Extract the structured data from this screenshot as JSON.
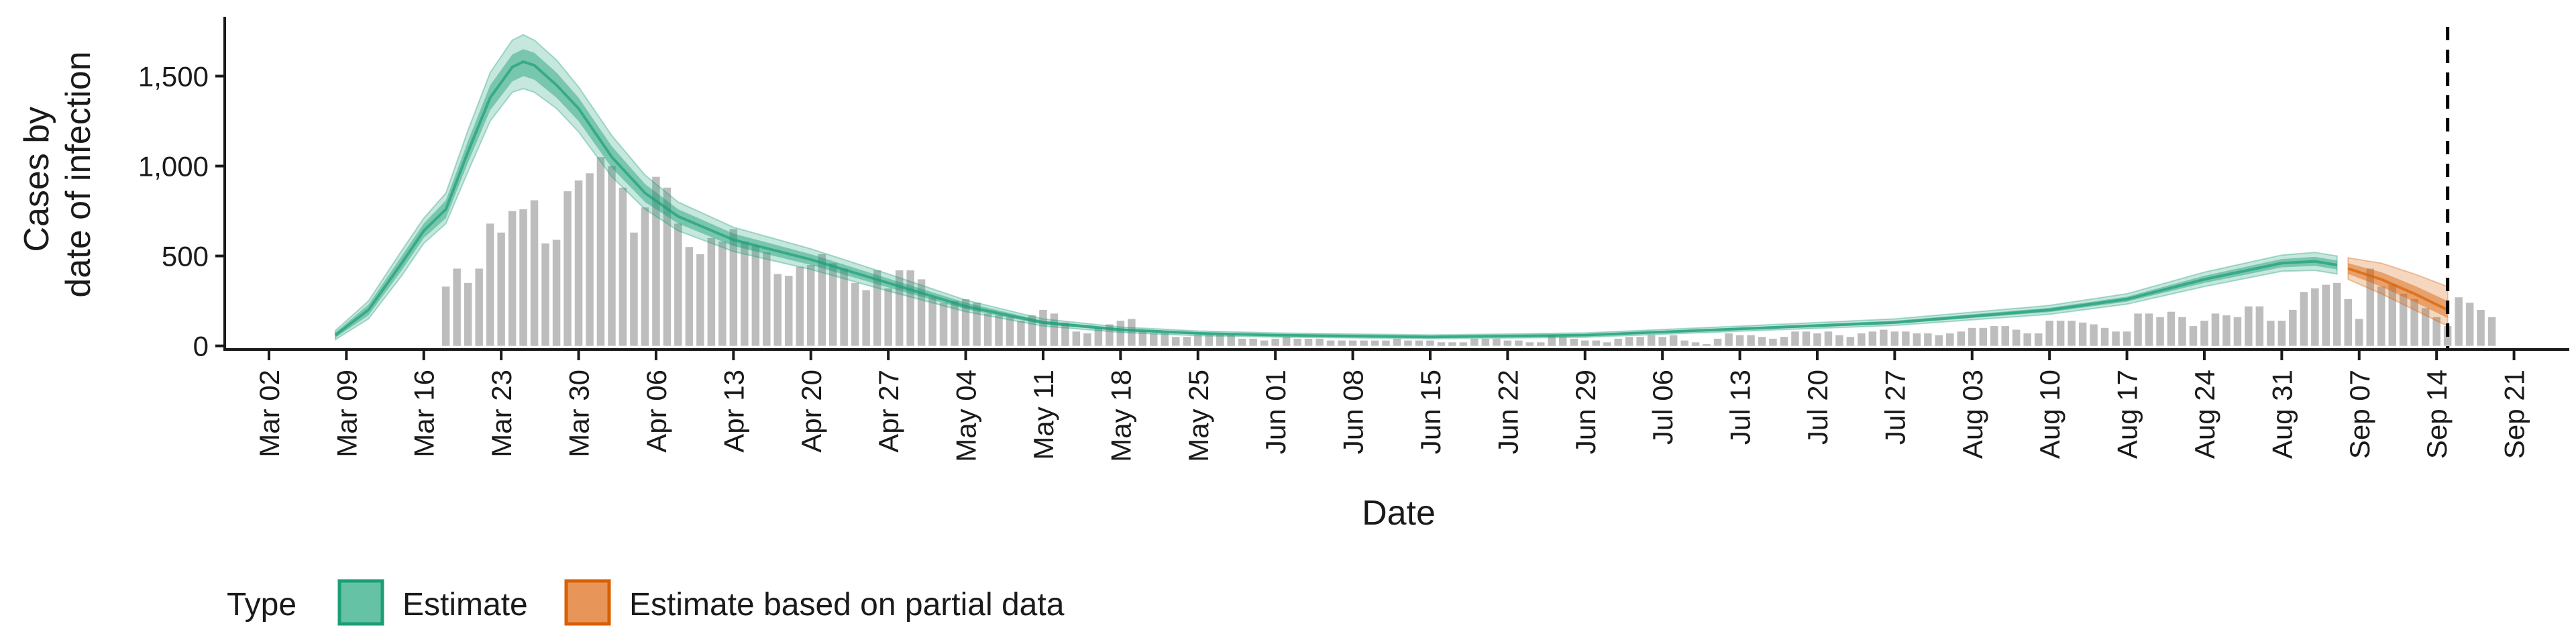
{
  "chart_data": {
    "type": "area",
    "xlabel": "Date",
    "ylabel_lines": [
      "Cases by",
      "date of infection"
    ],
    "ylim": [
      -20,
      1830
    ],
    "y_ticks": [
      0,
      500,
      1000,
      1500
    ],
    "y_tick_labels": [
      "0",
      "500",
      "1,000",
      "1,500"
    ],
    "x_ticks": [
      "2020-03-02",
      "2020-03-09",
      "2020-03-16",
      "2020-03-23",
      "2020-03-30",
      "2020-04-06",
      "2020-04-13",
      "2020-04-20",
      "2020-04-27",
      "2020-05-04",
      "2020-05-11",
      "2020-05-18",
      "2020-05-25",
      "2020-06-01",
      "2020-06-08",
      "2020-06-15",
      "2020-06-22",
      "2020-06-29",
      "2020-07-06",
      "2020-07-13",
      "2020-07-20",
      "2020-07-27",
      "2020-08-03",
      "2020-08-10",
      "2020-08-17",
      "2020-08-24",
      "2020-08-31",
      "2020-09-07",
      "2020-09-14",
      "2020-09-21"
    ],
    "x_tick_labels": [
      "Mar 02",
      "Mar 09",
      "Mar 16",
      "Mar 23",
      "Mar 30",
      "Apr 06",
      "Apr 13",
      "Apr 20",
      "Apr 27",
      "May 04",
      "May 11",
      "May 18",
      "May 25",
      "Jun 01",
      "Jun 08",
      "Jun 15",
      "Jun 22",
      "Jun 29",
      "Jul 06",
      "Jul 13",
      "Jul 20",
      "Jul 27",
      "Aug 03",
      "Aug 10",
      "Aug 17",
      "Aug 24",
      "Aug 31",
      "Sep 07",
      "Sep 14",
      "Sep 21"
    ],
    "xlim": [
      "2020-02-27",
      "2020-09-26"
    ],
    "vline": "2020-09-15",
    "grid": false,
    "legend_position": "bottom",
    "legend": {
      "title": "Type",
      "entries": [
        {
          "label": "Estimate",
          "fill": "#66c2a5",
          "border": "#1b9e77"
        },
        {
          "label": "Estimate based on partial data",
          "fill": "#e8955a",
          "border": "#d95f02"
        }
      ]
    },
    "colors": {
      "estimate": "#1b9e77",
      "partial": "#d95f02",
      "bars": "#bdbdbd"
    },
    "bars": {
      "start": "2020-03-18",
      "values": [
        330,
        430,
        350,
        430,
        680,
        630,
        750,
        760,
        810,
        570,
        590,
        860,
        920,
        960,
        1050,
        1000,
        880,
        630,
        770,
        940,
        880,
        680,
        550,
        510,
        600,
        580,
        650,
        580,
        560,
        520,
        400,
        390,
        440,
        450,
        510,
        460,
        430,
        350,
        310,
        420,
        320,
        420,
        420,
        370,
        270,
        240,
        250,
        260,
        240,
        180,
        170,
        160,
        140,
        170,
        200,
        180,
        130,
        80,
        70,
        100,
        120,
        140,
        150,
        80,
        70,
        70,
        50,
        50,
        60,
        60,
        60,
        60,
        40,
        40,
        30,
        40,
        50,
        40,
        40,
        40,
        30,
        30,
        30,
        30,
        30,
        30,
        40,
        30,
        30,
        30,
        20,
        20,
        20,
        40,
        40,
        40,
        30,
        30,
        20,
        20,
        60,
        50,
        40,
        30,
        30,
        20,
        40,
        50,
        50,
        60,
        50,
        60,
        30,
        20,
        10,
        40,
        70,
        60,
        60,
        50,
        40,
        50,
        80,
        80,
        70,
        80,
        60,
        50,
        70,
        80,
        90,
        80,
        80,
        70,
        70,
        60,
        70,
        80,
        100,
        100,
        110,
        110,
        90,
        70,
        70,
        140,
        140,
        140,
        130,
        120,
        100,
        80,
        80,
        180,
        180,
        160,
        190,
        160,
        110,
        140,
        180,
        170,
        160,
        220,
        220,
        140,
        140,
        200,
        300,
        320,
        340,
        350,
        260,
        150,
        430,
        330,
        340,
        290,
        260,
        210,
        160,
        110,
        270,
        240,
        200,
        160
      ]
    },
    "series": [
      {
        "name": "Estimate",
        "points": [
          [
            "2020-03-08",
            60,
            45,
            75,
            35,
            85
          ],
          [
            "2020-03-11",
            200,
            170,
            230,
            150,
            250
          ],
          [
            "2020-03-14",
            460,
            420,
            500,
            390,
            530
          ],
          [
            "2020-03-16",
            640,
            600,
            680,
            570,
            710
          ],
          [
            "2020-03-18",
            760,
            710,
            810,
            680,
            850
          ],
          [
            "2020-03-20",
            1080,
            1020,
            1140,
            970,
            1200
          ],
          [
            "2020-03-22",
            1380,
            1310,
            1450,
            1250,
            1520
          ],
          [
            "2020-03-24",
            1550,
            1470,
            1620,
            1410,
            1700
          ],
          [
            "2020-03-25",
            1580,
            1500,
            1650,
            1430,
            1730
          ],
          [
            "2020-03-26",
            1560,
            1480,
            1630,
            1410,
            1700
          ],
          [
            "2020-03-28",
            1450,
            1380,
            1520,
            1320,
            1590
          ],
          [
            "2020-03-30",
            1320,
            1250,
            1380,
            1190,
            1440
          ],
          [
            "2020-04-02",
            1050,
            990,
            1110,
            940,
            1170
          ],
          [
            "2020-04-05",
            850,
            800,
            900,
            760,
            950
          ],
          [
            "2020-04-08",
            720,
            680,
            760,
            640,
            800
          ],
          [
            "2020-04-13",
            590,
            555,
            625,
            525,
            660
          ],
          [
            "2020-04-20",
            480,
            450,
            510,
            425,
            540
          ],
          [
            "2020-04-27",
            350,
            325,
            375,
            305,
            400
          ],
          [
            "2020-05-04",
            220,
            205,
            240,
            190,
            255
          ],
          [
            "2020-05-11",
            130,
            120,
            140,
            110,
            150
          ],
          [
            "2020-05-18",
            90,
            82,
            98,
            75,
            105
          ],
          [
            "2020-05-25",
            70,
            63,
            77,
            57,
            83
          ],
          [
            "2020-06-01",
            60,
            54,
            66,
            49,
            72
          ],
          [
            "2020-06-15",
            50,
            45,
            56,
            40,
            61
          ],
          [
            "2020-06-29",
            60,
            54,
            66,
            48,
            72
          ],
          [
            "2020-07-13",
            95,
            88,
            102,
            82,
            110
          ],
          [
            "2020-07-27",
            130,
            122,
            140,
            114,
            150
          ],
          [
            "2020-08-10",
            200,
            188,
            212,
            176,
            225
          ],
          [
            "2020-08-17",
            260,
            246,
            274,
            232,
            290
          ],
          [
            "2020-08-24",
            370,
            350,
            390,
            330,
            410
          ],
          [
            "2020-08-31",
            460,
            437,
            483,
            415,
            505
          ],
          [
            "2020-09-03",
            470,
            445,
            495,
            420,
            520
          ],
          [
            "2020-09-05",
            450,
            425,
            475,
            400,
            500
          ]
        ]
      },
      {
        "name": "Estimate based on partial data",
        "points": [
          [
            "2020-09-06",
            430,
            400,
            460,
            370,
            490
          ],
          [
            "2020-09-09",
            370,
            330,
            410,
            290,
            460
          ],
          [
            "2020-09-12",
            290,
            245,
            335,
            200,
            400
          ],
          [
            "2020-09-15",
            200,
            155,
            250,
            110,
            330
          ]
        ]
      }
    ]
  }
}
